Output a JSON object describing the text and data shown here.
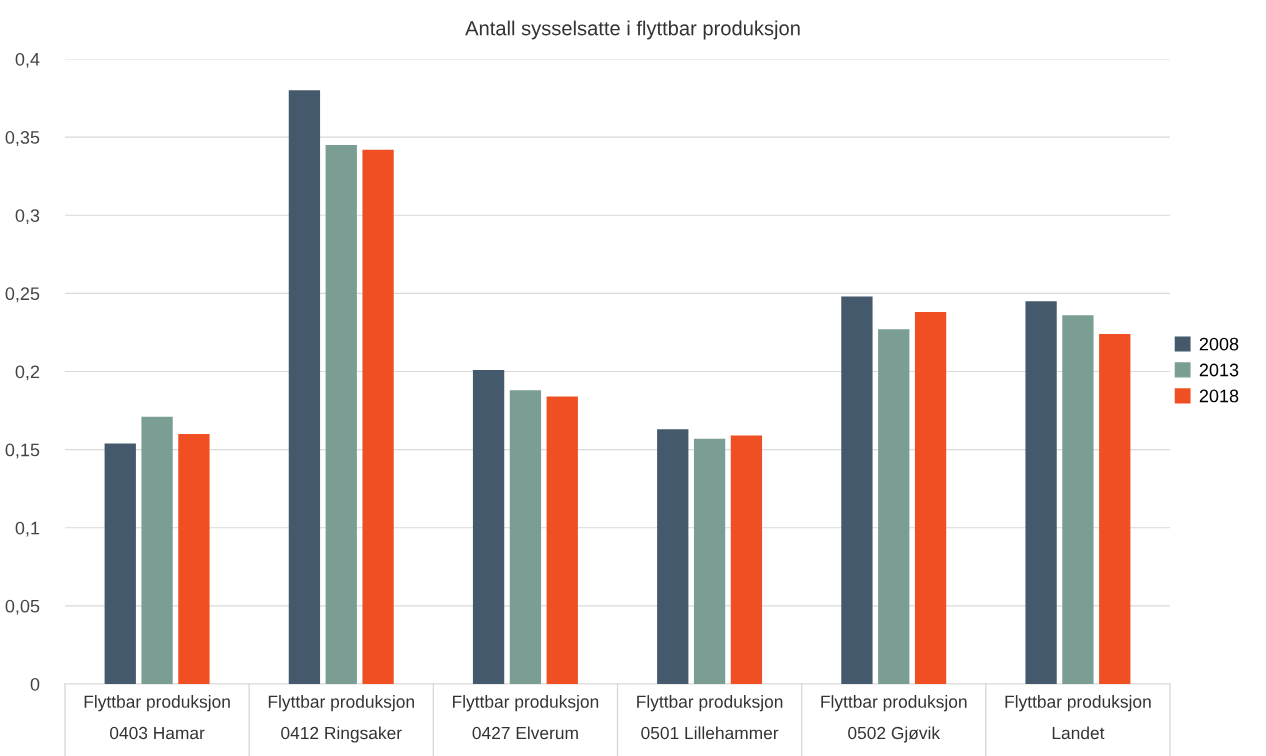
{
  "chart_data": {
    "type": "bar",
    "title": "Antall sysselsatte i flyttbar produksjon",
    "categories": [
      "Flyttbar produksjon\n0403 Hamar",
      "Flyttbar produksjon\n0412 Ringsaker",
      "Flyttbar produksjon\n0427 Elverum",
      "Flyttbar produksjon\n0501 Lillehammer",
      "Flyttbar produksjon\n0502 Gjøvik",
      "Flyttbar produksjon\nLandet"
    ],
    "series": [
      {
        "name": "2008",
        "color": "#44596b",
        "values": [
          0.154,
          0.38,
          0.201,
          0.163,
          0.248,
          0.245
        ]
      },
      {
        "name": "2013",
        "color": "#7b9e94",
        "values": [
          0.171,
          0.345,
          0.188,
          0.157,
          0.227,
          0.236
        ]
      },
      {
        "name": "2018",
        "color": "#f04e23",
        "values": [
          0.16,
          0.342,
          0.184,
          0.159,
          0.238,
          0.224
        ]
      }
    ],
    "ylim": [
      0,
      0.4
    ],
    "yticks": [
      0,
      {
        "value": 0.05,
        "label": "0,05"
      },
      {
        "value": 0.1,
        "label": "0,1"
      },
      {
        "value": 0.15,
        "label": "0,15"
      },
      {
        "value": 0.2,
        "label": "0,2"
      },
      {
        "value": 0.25,
        "label": "0,25"
      },
      {
        "value": 0.3,
        "label": "0,3"
      },
      {
        "value": 0.35,
        "label": "0,35"
      },
      {
        "value": 0.4,
        "label": "0,4"
      }
    ],
    "grid": "y",
    "legend": "right"
  }
}
